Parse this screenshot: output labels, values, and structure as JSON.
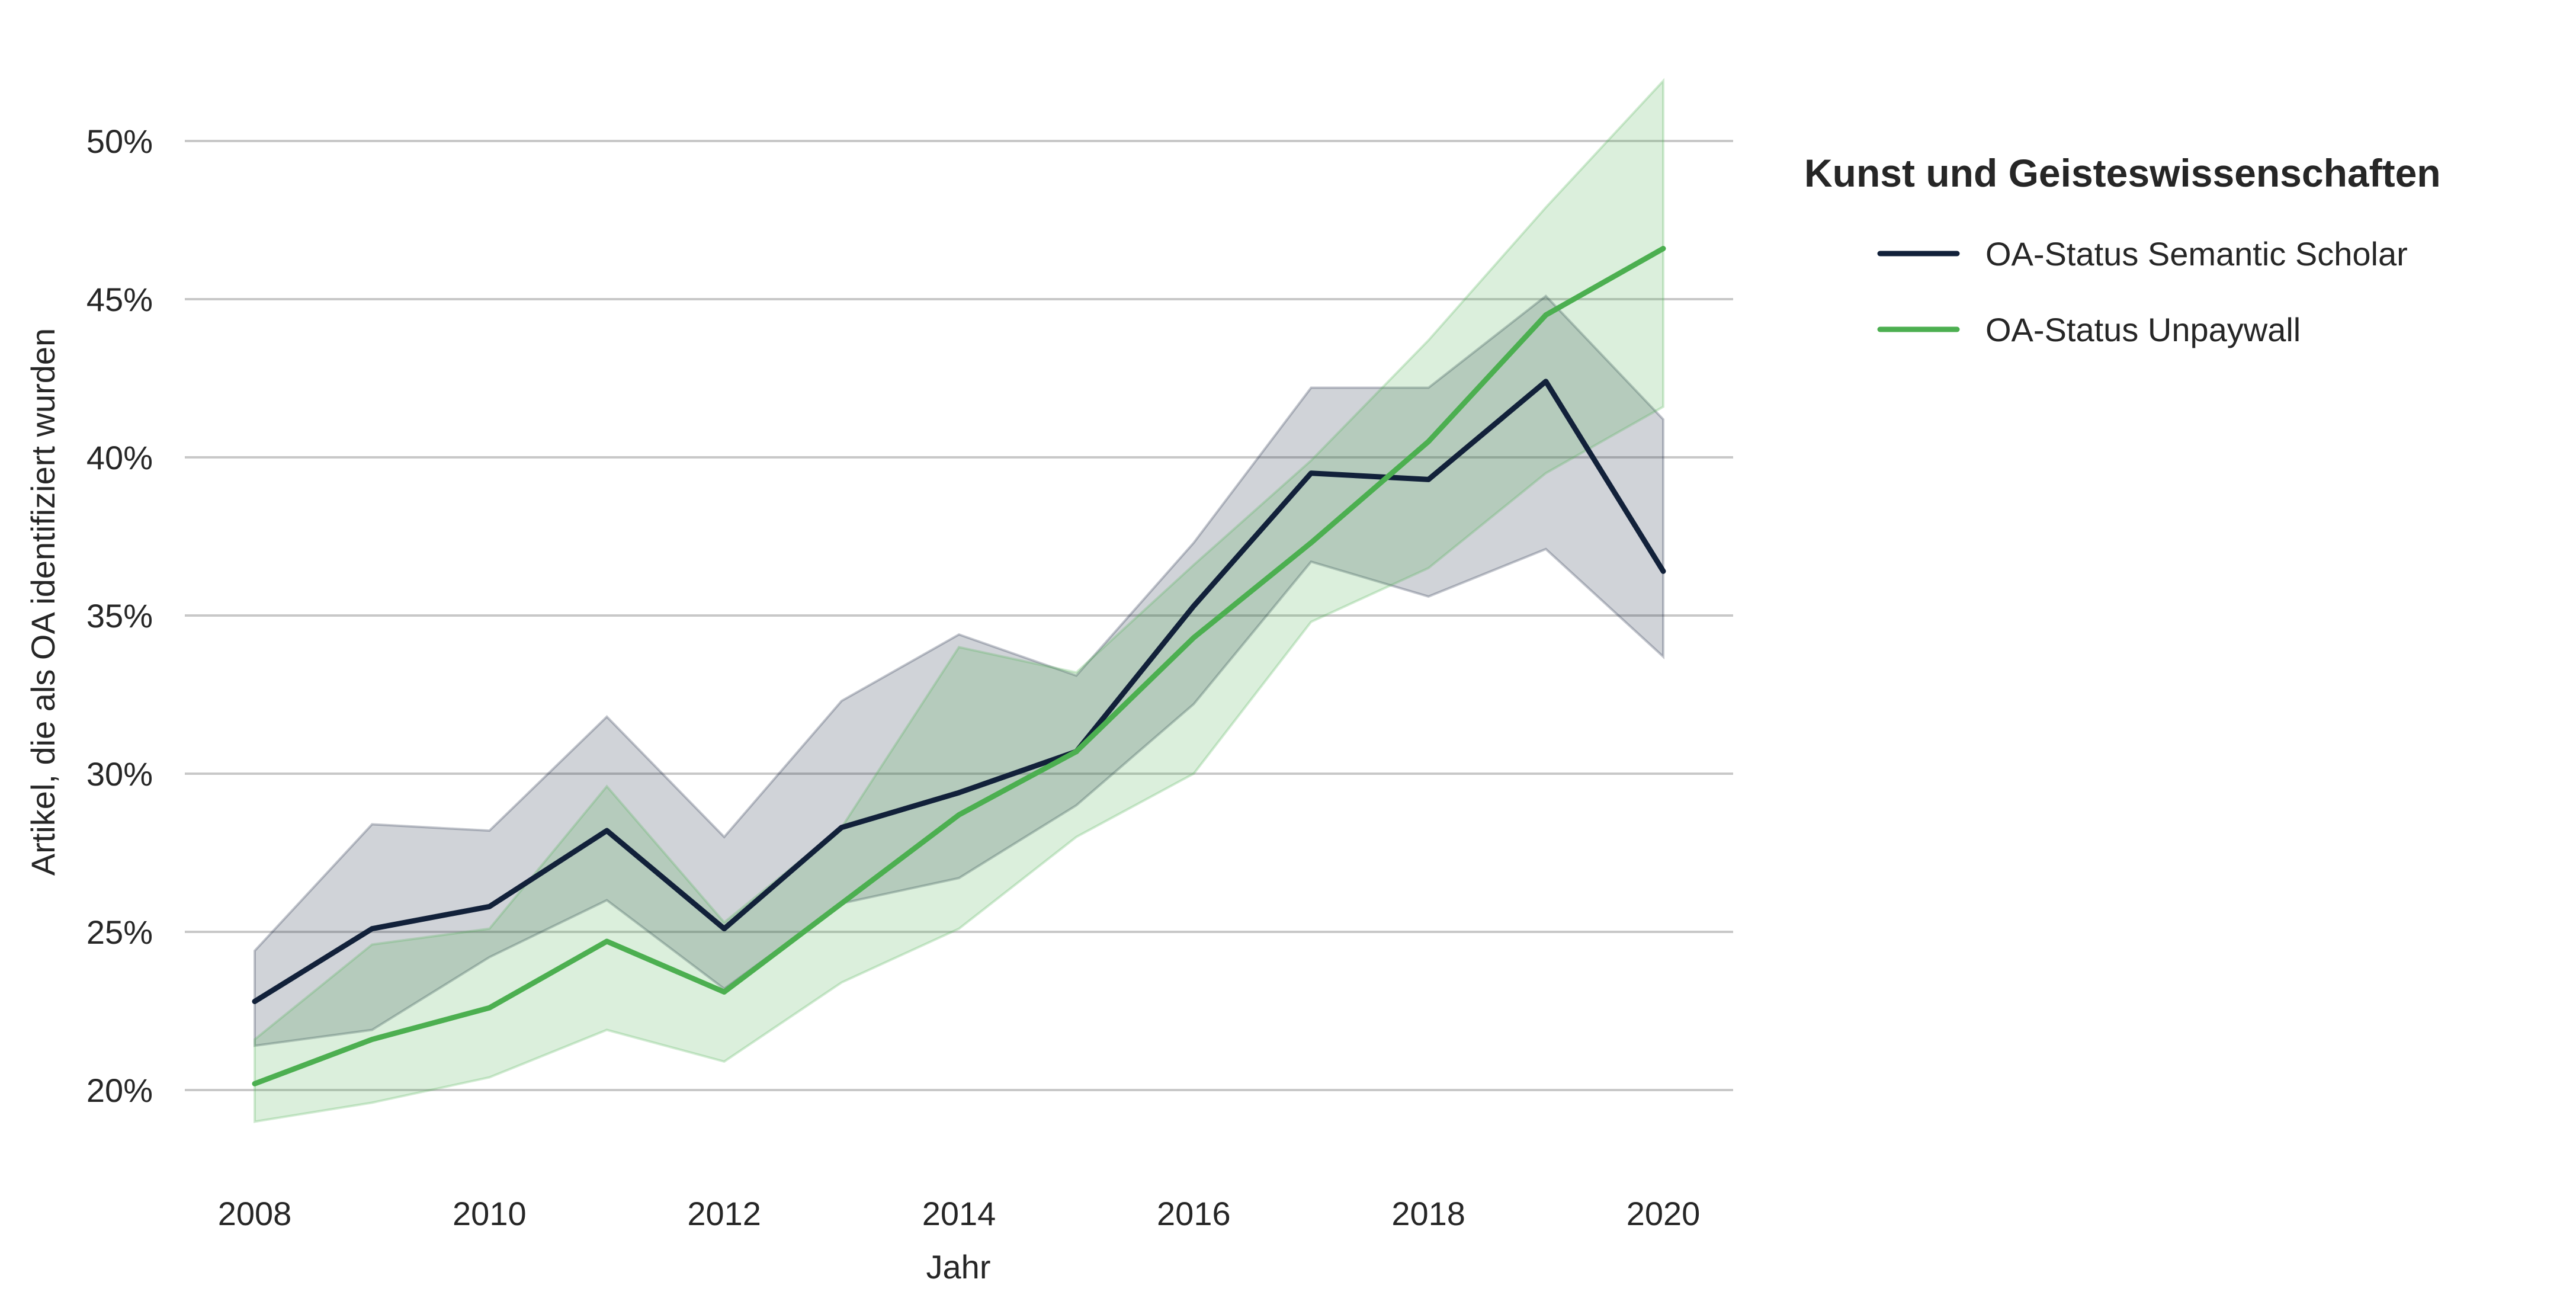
{
  "chart_data": {
    "type": "line",
    "x": [
      2008,
      2009,
      2010,
      2011,
      2012,
      2013,
      2014,
      2015,
      2016,
      2017,
      2018,
      2019,
      2020
    ],
    "xticks": [
      2008,
      2010,
      2012,
      2014,
      2016,
      2018,
      2020
    ],
    "xtick_labels": [
      "2008",
      "2010",
      "2012",
      "2014",
      "2016",
      "2018",
      "2020"
    ],
    "yticks": [
      20,
      25,
      30,
      35,
      40,
      45,
      50
    ],
    "ytick_labels": [
      "20%",
      "25%",
      "30%",
      "35%",
      "40%",
      "45%",
      "50%"
    ],
    "xlim": [
      2007.3,
      2020.6
    ],
    "ylim": [
      17.8,
      53.4
    ],
    "xlabel": "Jahr",
    "ylabel": "Artikel, die als OA identifiziert wurden",
    "grid": "horizontal",
    "legend": {
      "title": "Kunst und Geisteswissenschaften",
      "position": "right"
    },
    "series": [
      {
        "name": "OA-Status Semantic Scholar",
        "color": "#12213a",
        "values": [
          22.8,
          25.1,
          25.8,
          28.2,
          25.1,
          28.3,
          29.4,
          30.7,
          35.3,
          39.5,
          39.3,
          42.4,
          36.4
        ],
        "lower": [
          21.4,
          21.9,
          24.2,
          26.0,
          23.2,
          25.9,
          26.7,
          29.0,
          32.2,
          36.7,
          35.6,
          37.1,
          33.7
        ],
        "upper": [
          24.4,
          28.4,
          28.2,
          31.8,
          28.0,
          32.3,
          34.4,
          33.1,
          37.3,
          42.2,
          42.2,
          45.1,
          41.2
        ]
      },
      {
        "name": "OA-Status Unpaywall",
        "color": "#4caf50",
        "values": [
          20.2,
          21.6,
          22.6,
          24.7,
          23.1,
          25.9,
          28.7,
          30.7,
          34.3,
          37.3,
          40.5,
          44.5,
          46.6
        ],
        "lower": [
          19.0,
          19.6,
          20.4,
          21.9,
          20.9,
          23.4,
          25.1,
          28.0,
          30.0,
          34.8,
          36.5,
          39.5,
          41.6
        ],
        "upper": [
          21.6,
          24.6,
          25.1,
          29.6,
          25.3,
          28.3,
          34.0,
          33.2,
          36.6,
          39.9,
          43.7,
          47.9,
          51.9
        ]
      }
    ]
  }
}
